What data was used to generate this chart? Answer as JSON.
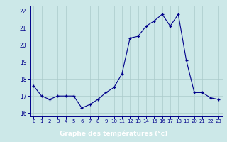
{
  "hours": [
    0,
    1,
    2,
    3,
    4,
    5,
    6,
    7,
    8,
    9,
    10,
    11,
    12,
    13,
    14,
    15,
    16,
    17,
    18,
    19,
    20,
    21,
    22,
    23
  ],
  "temps": [
    17.6,
    17.0,
    16.8,
    17.0,
    17.0,
    17.0,
    16.3,
    16.5,
    16.8,
    17.2,
    17.5,
    18.3,
    20.4,
    20.5,
    21.1,
    21.4,
    21.8,
    21.1,
    21.8,
    19.1,
    17.2,
    17.2,
    16.9,
    16.8
  ],
  "xlabel": "Graphe des températures (°c)",
  "ylim": [
    15.8,
    22.3
  ],
  "xlim": [
    -0.5,
    23.5
  ],
  "yticks": [
    16,
    17,
    18,
    19,
    20,
    21,
    22
  ],
  "xticks": [
    0,
    1,
    2,
    3,
    4,
    5,
    6,
    7,
    8,
    9,
    10,
    11,
    12,
    13,
    14,
    15,
    16,
    17,
    18,
    19,
    20,
    21,
    22,
    23
  ],
  "line_color": "#00008B",
  "marker_color": "#00008B",
  "bg_color": "#cce8e8",
  "plot_bg_color": "#cce8e8",
  "xlabel_bg_color": "#4040c0",
  "grid_color": "#aacaca",
  "axis_label_color": "#ffffff",
  "tick_color": "#00008B",
  "spine_color": "#00008B"
}
